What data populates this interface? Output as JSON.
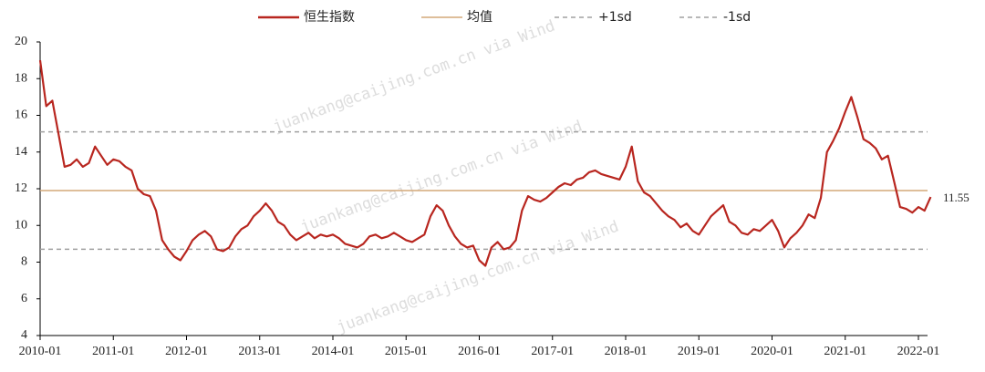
{
  "chart_data": {
    "type": "line",
    "watermark": "juankang@caijing.com.cn via Wind",
    "annotation": "11.55",
    "x": [
      "2010-01",
      "2010-02",
      "2010-03",
      "2010-04",
      "2010-05",
      "2010-06",
      "2010-07",
      "2010-08",
      "2010-09",
      "2010-10",
      "2010-11",
      "2010-12",
      "2011-01",
      "2011-02",
      "2011-03",
      "2011-04",
      "2011-05",
      "2011-06",
      "2011-07",
      "2011-08",
      "2011-09",
      "2011-10",
      "2011-11",
      "2011-12",
      "2012-01",
      "2012-02",
      "2012-03",
      "2012-04",
      "2012-05",
      "2012-06",
      "2012-07",
      "2012-08",
      "2012-09",
      "2012-10",
      "2012-11",
      "2012-12",
      "2013-01",
      "2013-02",
      "2013-03",
      "2013-04",
      "2013-05",
      "2013-06",
      "2013-07",
      "2013-08",
      "2013-09",
      "2013-10",
      "2013-11",
      "2013-12",
      "2014-01",
      "2014-02",
      "2014-03",
      "2014-04",
      "2014-05",
      "2014-06",
      "2014-07",
      "2014-08",
      "2014-09",
      "2014-10",
      "2014-11",
      "2014-12",
      "2015-01",
      "2015-02",
      "2015-03",
      "2015-04",
      "2015-05",
      "2015-06",
      "2015-07",
      "2015-08",
      "2015-09",
      "2015-10",
      "2015-11",
      "2015-12",
      "2016-01",
      "2016-02",
      "2016-03",
      "2016-04",
      "2016-05",
      "2016-06",
      "2016-07",
      "2016-08",
      "2016-09",
      "2016-10",
      "2016-11",
      "2016-12",
      "2017-01",
      "2017-02",
      "2017-03",
      "2017-04",
      "2017-05",
      "2017-06",
      "2017-07",
      "2017-08",
      "2017-09",
      "2017-10",
      "2017-11",
      "2017-12",
      "2018-01",
      "2018-02",
      "2018-03",
      "2018-04",
      "2018-05",
      "2018-06",
      "2018-07",
      "2018-08",
      "2018-09",
      "2018-10",
      "2018-11",
      "2018-12",
      "2019-01",
      "2019-02",
      "2019-03",
      "2019-04",
      "2019-05",
      "2019-06",
      "2019-07",
      "2019-08",
      "2019-09",
      "2019-10",
      "2019-11",
      "2019-12",
      "2020-01",
      "2020-02",
      "2020-03",
      "2020-04",
      "2020-05",
      "2020-06",
      "2020-07",
      "2020-08",
      "2020-09",
      "2020-10",
      "2020-11",
      "2020-12",
      "2021-01",
      "2021-02",
      "2021-03",
      "2021-04",
      "2021-05",
      "2021-06",
      "2021-07",
      "2021-08",
      "2021-09",
      "2021-10",
      "2021-11",
      "2021-12",
      "2022-01",
      "2022-02",
      "2022-03"
    ],
    "series": [
      {
        "name": "恒生指数",
        "color": "#b8261f",
        "values": [
          19.0,
          16.5,
          16.8,
          15.0,
          13.2,
          13.3,
          13.6,
          13.2,
          13.4,
          14.3,
          13.8,
          13.3,
          13.6,
          13.5,
          13.2,
          13.0,
          12.0,
          11.7,
          11.6,
          10.8,
          9.2,
          8.7,
          8.3,
          8.1,
          8.6,
          9.2,
          9.5,
          9.7,
          9.4,
          8.7,
          8.6,
          8.8,
          9.4,
          9.8,
          10.0,
          10.5,
          10.8,
          11.2,
          10.8,
          10.2,
          10.0,
          9.5,
          9.2,
          9.4,
          9.6,
          9.3,
          9.5,
          9.4,
          9.5,
          9.3,
          9.0,
          8.9,
          8.8,
          9.0,
          9.4,
          9.5,
          9.3,
          9.4,
          9.6,
          9.4,
          9.2,
          9.1,
          9.3,
          9.5,
          10.5,
          11.1,
          10.8,
          10.0,
          9.4,
          9.0,
          8.8,
          8.9,
          8.1,
          7.8,
          8.8,
          9.1,
          8.7,
          8.8,
          9.2,
          10.8,
          11.6,
          11.4,
          11.3,
          11.5,
          11.8,
          12.1,
          12.3,
          12.2,
          12.5,
          12.6,
          12.9,
          13.0,
          12.8,
          12.7,
          12.6,
          12.5,
          13.2,
          14.3,
          12.4,
          11.8,
          11.6,
          11.2,
          10.8,
          10.5,
          10.3,
          9.9,
          10.1,
          9.7,
          9.5,
          10.0,
          10.5,
          10.8,
          11.1,
          10.2,
          10.0,
          9.6,
          9.5,
          9.8,
          9.7,
          10.0,
          10.3,
          9.7,
          8.8,
          9.3,
          9.6,
          10.0,
          10.6,
          10.4,
          11.5,
          14.0,
          14.6,
          15.3,
          16.2,
          17.0,
          15.9,
          14.7,
          14.5,
          14.2,
          13.6,
          13.8,
          12.4,
          11.0,
          10.9,
          10.7,
          11.0,
          10.8,
          11.55
        ]
      }
    ],
    "hlines": [
      {
        "name": "均值",
        "value": 11.9,
        "color": "#d4a878",
        "dashed": false
      },
      {
        "name": "+1sd",
        "value": 15.1,
        "color": "#a0a0a0",
        "dashed": true
      },
      {
        "name": "-1sd",
        "value": 8.7,
        "color": "#a0a0a0",
        "dashed": true
      }
    ],
    "ylim": [
      4,
      20
    ],
    "yticks": [
      4,
      6,
      8,
      10,
      12,
      14,
      16,
      18,
      20
    ],
    "xticks": [
      "2010-01",
      "2011-01",
      "2012-01",
      "2013-01",
      "2014-01",
      "2015-01",
      "2016-01",
      "2017-01",
      "2018-01",
      "2019-01",
      "2020-01",
      "2021-01",
      "2022-01"
    ]
  }
}
